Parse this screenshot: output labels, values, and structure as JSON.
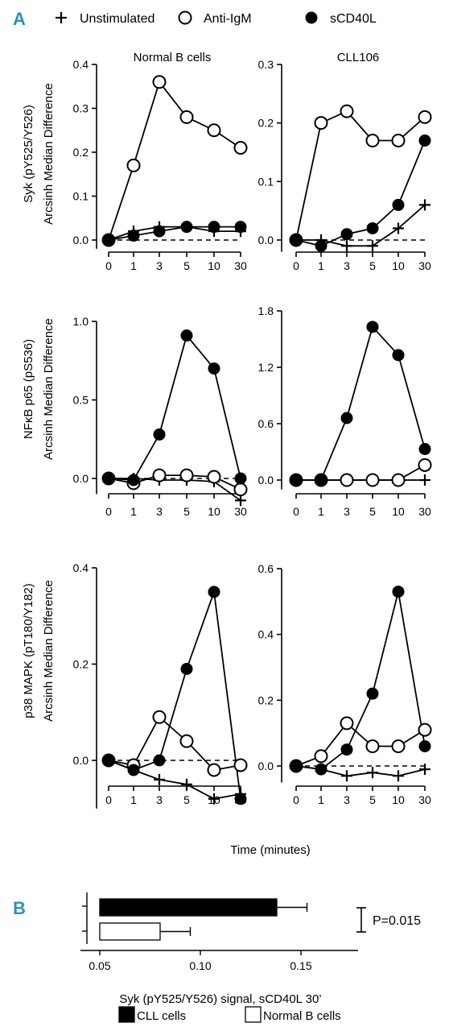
{
  "figure": {
    "panel_a_letter": "A",
    "panel_b_letter": "B",
    "accent_color": "#2f8fbf",
    "legend_a": [
      {
        "marker": "plus-marker",
        "label": "Unstimulated"
      },
      {
        "marker": "open-circle-marker",
        "label": "Anti-IgM"
      },
      {
        "marker": "filled-circle-marker",
        "label": "sCD40L"
      }
    ],
    "row_labels": [
      {
        "line1": "Syk (pY525/Y526)",
        "line2": "Arcsinh Median Difference"
      },
      {
        "line1": "NFκB p65 (pS536)",
        "line2": "Arcsinh Median Difference"
      },
      {
        "line1": "p38 MAPK (pT180/Y182)",
        "line2": "Arcsinh Median Difference"
      }
    ],
    "xlabel_a": "Time (minutes)"
  },
  "chart_data": [
    {
      "type": "line",
      "title": "Normal B cells",
      "x": [
        "0",
        "1",
        "3",
        "5",
        "10",
        "30"
      ],
      "ylim": [
        -0.02,
        0.4
      ],
      "yticks": [
        "0.0",
        "0.1",
        "0.2",
        "0.3",
        "0.4"
      ],
      "series": [
        {
          "name": "Unstimulated",
          "values": [
            0.0,
            0.02,
            0.03,
            0.03,
            0.02,
            0.02
          ]
        },
        {
          "name": "Anti-IgM",
          "values": [
            0.0,
            0.17,
            0.36,
            0.28,
            0.25,
            0.21
          ]
        },
        {
          "name": "sCD40L",
          "values": [
            0.0,
            0.01,
            0.02,
            0.03,
            0.03,
            0.03
          ]
        }
      ]
    },
    {
      "type": "line",
      "title": "CLL106",
      "x": [
        "0",
        "1",
        "3",
        "5",
        "10",
        "30"
      ],
      "ylim": [
        -0.02,
        0.3
      ],
      "yticks": [
        "0.0",
        "0.1",
        "0.2",
        "0.3"
      ],
      "series": [
        {
          "name": "Unstimulated",
          "values": [
            0.0,
            0.0,
            -0.01,
            -0.01,
            0.02,
            0.06
          ]
        },
        {
          "name": "Anti-IgM",
          "values": [
            0.0,
            0.2,
            0.22,
            0.17,
            0.17,
            0.21
          ]
        },
        {
          "name": "sCD40L",
          "values": [
            0.0,
            -0.01,
            0.01,
            0.02,
            0.06,
            0.17
          ]
        }
      ]
    },
    {
      "type": "line",
      "title": "",
      "x": [
        "0",
        "1",
        "3",
        "5",
        "10",
        "30"
      ],
      "ylim": [
        -0.1,
        1.0
      ],
      "yticks": [
        "0.0",
        "0.5",
        "1.0"
      ],
      "series": [
        {
          "name": "Unstimulated",
          "values": [
            0.0,
            0.0,
            -0.01,
            -0.01,
            -0.02,
            -0.14
          ]
        },
        {
          "name": "Anti-IgM",
          "values": [
            0.0,
            -0.03,
            0.02,
            0.02,
            0.01,
            -0.07
          ]
        },
        {
          "name": "sCD40L",
          "values": [
            0.0,
            -0.01,
            0.28,
            0.91,
            0.7,
            0.0
          ]
        }
      ]
    },
    {
      "type": "line",
      "title": "",
      "x": [
        "0",
        "1",
        "3",
        "5",
        "10",
        "30"
      ],
      "ylim": [
        -0.1,
        1.8
      ],
      "yticks": [
        "0.0",
        "0.6",
        "1.2",
        "1.8"
      ],
      "series": [
        {
          "name": "Unstimulated",
          "values": [
            0.0,
            0.0,
            0.0,
            0.0,
            0.0,
            0.0
          ]
        },
        {
          "name": "Anti-IgM",
          "values": [
            0.0,
            0.0,
            0.0,
            0.0,
            0.0,
            0.16
          ]
        },
        {
          "name": "sCD40L",
          "values": [
            0.0,
            0.0,
            0.66,
            1.63,
            1.33,
            0.33
          ]
        }
      ]
    },
    {
      "type": "line",
      "title": "",
      "x": [
        "0",
        "1",
        "3",
        "5",
        "10",
        "30"
      ],
      "ylim": [
        -0.1,
        0.4
      ],
      "yticks": [
        "0.0",
        "0.2",
        "0.4"
      ],
      "series": [
        {
          "name": "Unstimulated",
          "values": [
            0.0,
            -0.02,
            -0.04,
            -0.05,
            -0.08,
            -0.07
          ]
        },
        {
          "name": "Anti-IgM",
          "values": [
            0.0,
            -0.01,
            0.09,
            0.04,
            -0.02,
            -0.01
          ]
        },
        {
          "name": "sCD40L",
          "values": [
            0.0,
            -0.02,
            0.0,
            0.19,
            0.35,
            -0.08
          ]
        }
      ]
    },
    {
      "type": "line",
      "title": "",
      "x": [
        "0",
        "1",
        "3",
        "5",
        "10",
        "30"
      ],
      "ylim": [
        -0.05,
        0.6
      ],
      "yticks": [
        "0.0",
        "0.2",
        "0.4",
        "0.6"
      ],
      "series": [
        {
          "name": "Unstimulated",
          "values": [
            0.0,
            -0.01,
            -0.03,
            -0.02,
            -0.03,
            -0.01
          ]
        },
        {
          "name": "Anti-IgM",
          "values": [
            0.0,
            0.03,
            0.13,
            0.06,
            0.06,
            0.11
          ]
        },
        {
          "name": "sCD40L",
          "values": [
            0.0,
            -0.01,
            0.05,
            0.22,
            0.53,
            0.06
          ]
        }
      ]
    },
    {
      "type": "bar",
      "orientation": "horizontal",
      "categories": [
        "CLL cells",
        "Normal B cells"
      ],
      "values": [
        0.138,
        0.08
      ],
      "errors": [
        0.015,
        0.015
      ],
      "xlim": [
        0.05,
        0.18
      ],
      "xticks": [
        "0.05",
        "0.10",
        "0.15"
      ],
      "xlabel": "Syk (pY525/Y526) signal, sCD40L 30’",
      "annotation": "P=0.015",
      "legend": [
        {
          "label": "CLL cells",
          "fill": "#000000"
        },
        {
          "label": "Normal B cells",
          "fill": "#ffffff"
        }
      ]
    }
  ]
}
